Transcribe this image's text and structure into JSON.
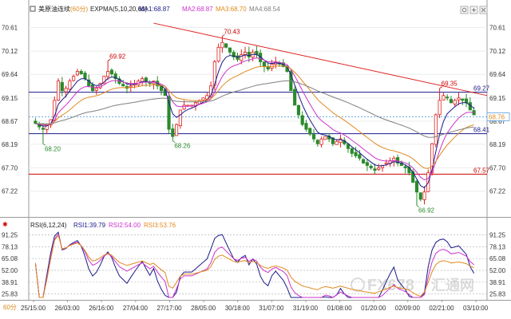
{
  "chart_data": [
    {
      "type": "candlestick",
      "title": "美原油连续",
      "timeframe": "(60分)",
      "indicator": {
        "name": "EXPMA(5,10,20,60)",
        "items": [
          {
            "label": "MA1:68.87",
            "color": "#1a1a8c"
          },
          {
            "label": "MA2:68.87",
            "color": "#cc33cc"
          },
          {
            "label": "MA3:68.70",
            "color": "#e08a1e"
          },
          {
            "label": "MA4:68.54",
            "color": "#808080"
          }
        ]
      },
      "ylim": [
        66.75,
        70.85
      ],
      "yticks": [
        70.61,
        70.12,
        69.64,
        69.15,
        68.67,
        68.19,
        67.7,
        67.22
      ],
      "x_time_labels": [
        "25/15:00",
        "26/03:00",
        "26/16:00",
        "27/04:00",
        "27/17:00",
        "28/05:00",
        "30/18:00",
        "31/07:00",
        "31/19:00",
        "01/08:00",
        "01/20:00",
        "02/09:00",
        "02/21:00",
        "03/10:00"
      ],
      "close_path": [
        68.62,
        68.55,
        68.5,
        68.58,
        68.7,
        69.1,
        69.5,
        69.3,
        69.35,
        69.5,
        69.6,
        69.7,
        69.65,
        69.55,
        69.4,
        69.3,
        69.35,
        69.45,
        69.6,
        69.7,
        69.65,
        69.55,
        69.45,
        69.4,
        69.35,
        69.4,
        69.45,
        69.5,
        69.55,
        69.5,
        69.45,
        69.5,
        69.4,
        69.3,
        69.2,
        68.5,
        68.35,
        68.6,
        68.9,
        69.0,
        69.0,
        69.0,
        69.05,
        69.1,
        69.15,
        69.2,
        69.4,
        69.9,
        70.2,
        70.3,
        70.2,
        70.1,
        70.0,
        69.95,
        70.05,
        70.1,
        70.0,
        70.1,
        70.05,
        69.9,
        69.8,
        69.75,
        69.85,
        69.9,
        69.85,
        69.8,
        69.7,
        69.3,
        69.0,
        68.8,
        68.6,
        68.5,
        68.4,
        68.3,
        68.2,
        68.3,
        68.35,
        68.3,
        68.2,
        68.25,
        68.3,
        68.2,
        68.1,
        68.0,
        67.95,
        67.9,
        67.8,
        67.75,
        67.7,
        67.65,
        67.7,
        67.75,
        67.8,
        67.85,
        67.9,
        67.8,
        67.75,
        67.7,
        67.6,
        67.4,
        67.2,
        67.05,
        67.2,
        67.6,
        68.2,
        68.8,
        69.1,
        69.2,
        69.15,
        69.05,
        69.1,
        69.15,
        69.1,
        69.05,
        68.9,
        68.8
      ],
      "ma_periods": [
        5,
        10,
        20,
        60
      ],
      "annotations": [
        {
          "label": "70.43",
          "index": 49,
          "value": 70.43,
          "side": "above",
          "color": "#cc0000"
        },
        {
          "label": "69.92",
          "index": 19,
          "value": 69.92,
          "side": "above",
          "color": "#cc0000"
        },
        {
          "label": "69.35",
          "index": 106,
          "value": 69.35,
          "side": "above",
          "color": "#cc0000"
        },
        {
          "label": "68.20",
          "index": 2,
          "value": 68.2,
          "side": "below",
          "color": "#2a8a2a"
        },
        {
          "label": "68.26",
          "index": 36,
          "value": 68.26,
          "side": "below",
          "color": "#2a8a2a"
        },
        {
          "label": "66.92",
          "index": 100,
          "value": 66.92,
          "side": "below",
          "color": "#2a8a2a"
        }
      ],
      "hlines": [
        {
          "value": 69.27,
          "label": "69.27",
          "color": "#1a1a8c",
          "label_color": "#1a1a8c"
        },
        {
          "value": 68.41,
          "label": "68.41",
          "color": "#1a1a8c",
          "label_color": "#1a1a8c"
        },
        {
          "value": 67.57,
          "label": "67.57",
          "color": "#cc0000",
          "label_color": "#cc0000"
        }
      ],
      "current": {
        "value": 68.76,
        "label": "68.76"
      },
      "trendline": {
        "from": {
          "index": 31,
          "value": 70.7
        },
        "to": {
          "index": 117,
          "value": 69.2
        },
        "color": "#e02020"
      }
    },
    {
      "type": "line",
      "title": "RSI(6,12,24)",
      "indicator": {
        "items": [
          {
            "label": "RSI1:39.79",
            "color": "#1a1a8c"
          },
          {
            "label": "RSI2:54.00",
            "color": "#cc33cc"
          },
          {
            "label": "RSI3:53.76",
            "color": "#e08a1e"
          }
        ]
      },
      "ylim": [
        22,
        97
      ],
      "yticks": [
        91.25,
        78.13,
        65.08,
        52.0,
        38.91,
        25.83
      ],
      "reference_lines": [
        78.13,
        65.08,
        52.0,
        38.91,
        25.83
      ],
      "periods": [
        6,
        12,
        24
      ]
    }
  ],
  "bottom_label": "60分",
  "watermark": {
    "brand": "FX678",
    "cn": "汇通网"
  },
  "colors": {
    "up": "#e02020",
    "down": "#2a8a2a",
    "background": "#ffffff"
  }
}
